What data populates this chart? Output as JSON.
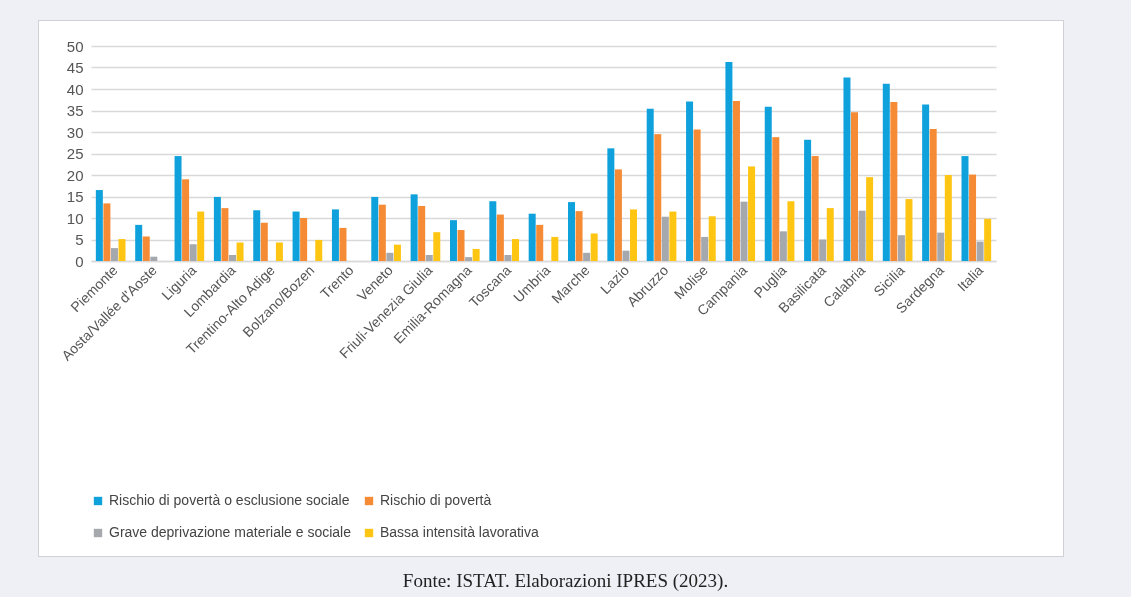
{
  "chart_data": {
    "type": "bar",
    "categories": [
      "Piemonte",
      "Aosta/Vallée d'Aoste",
      "Liguria",
      "Lombardia",
      "Trentino-Alto Adige",
      "Bolzano/Bozen",
      "Trento",
      "Veneto",
      "Friuli-Venezia Giulia",
      "Emilia-Romagna",
      "Toscana",
      "Umbria",
      "Marche",
      "Lazio",
      "Abruzzo",
      "Molise",
      "Campania",
      "Puglia",
      "Basilicata",
      "Calabria",
      "Sicilia",
      "Sardegna",
      "Italia"
    ],
    "series": [
      {
        "name": "Rischio di povertà o esclusione sociale",
        "color": "#0ea1db",
        "values": [
          16.5,
          8.4,
          24.4,
          14.9,
          11.8,
          11.5,
          12.0,
          14.9,
          15.5,
          9.5,
          13.9,
          11.0,
          13.7,
          26.2,
          35.4,
          37.1,
          46.3,
          35.9,
          28.2,
          42.7,
          41.2,
          36.4,
          24.4
        ]
      },
      {
        "name": "Rischio di povertà",
        "color": "#f68b36",
        "values": [
          13.4,
          5.7,
          19.0,
          12.3,
          8.9,
          10.0,
          7.7,
          13.1,
          12.8,
          7.2,
          10.8,
          8.4,
          11.6,
          21.3,
          29.5,
          30.6,
          37.2,
          28.8,
          24.4,
          34.6,
          37.0,
          30.7,
          20.1
        ]
      },
      {
        "name": "Grave deprivazione materiale e sociale",
        "color": "#a5a8ad",
        "values": [
          3.0,
          1.0,
          3.9,
          1.4,
          null,
          null,
          null,
          1.9,
          1.4,
          0.9,
          1.4,
          null,
          1.9,
          2.4,
          10.3,
          5.6,
          13.8,
          6.9,
          5.0,
          11.7,
          6.0,
          6.6,
          4.5
        ]
      },
      {
        "name": "Bassa intensità lavorativa",
        "color": "#fec513",
        "values": [
          5.1,
          null,
          11.5,
          4.3,
          4.3,
          4.9,
          null,
          3.8,
          6.7,
          2.8,
          5.1,
          5.6,
          6.4,
          12.0,
          11.5,
          10.4,
          22.0,
          13.9,
          12.3,
          19.5,
          14.4,
          20.0,
          9.8
        ]
      }
    ],
    "ylim": [
      0,
      50
    ],
    "yticks": [
      0,
      5,
      10,
      15,
      20,
      25,
      30,
      35,
      40,
      45,
      50
    ],
    "grid": "y",
    "legend": "bottom",
    "annotations": [
      "Fonte: ISTAT. Elaborazioni IPRES (2023)."
    ]
  }
}
